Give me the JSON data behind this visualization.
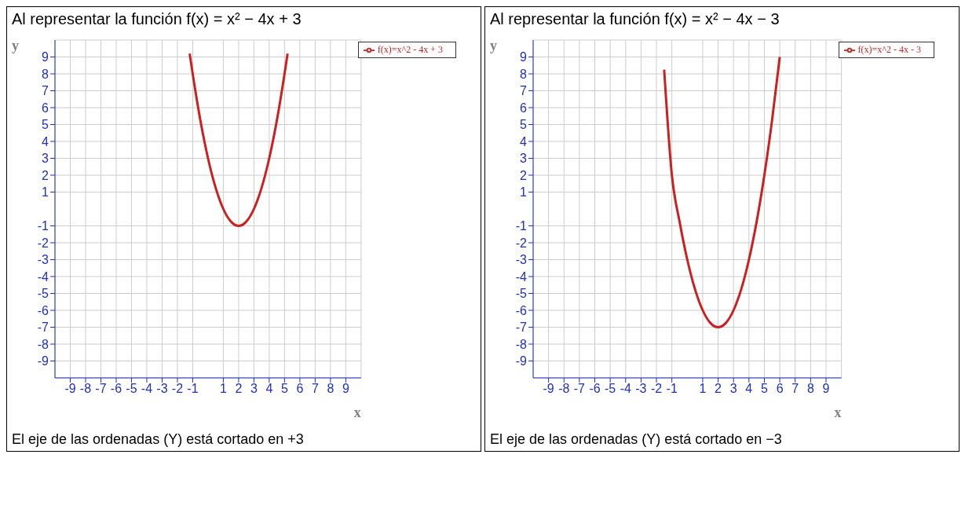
{
  "chart_data": [
    {
      "type": "line",
      "title": "Al representar la función f(x) = x² − 4x + 3",
      "xlabel": "x",
      "ylabel": "y",
      "xlim": [
        -10,
        10
      ],
      "ylim": [
        -10,
        10
      ],
      "xticks": [
        -9,
        -8,
        -7,
        -6,
        -5,
        -4,
        -3,
        -2,
        -1,
        1,
        2,
        3,
        4,
        5,
        6,
        7,
        8,
        9
      ],
      "yticks": [
        -9,
        -8,
        -7,
        -6,
        -5,
        -4,
        -3,
        -2,
        -1,
        1,
        2,
        3,
        4,
        5,
        6,
        7,
        8,
        9
      ],
      "grid": true,
      "legend": "top right",
      "marker": "none",
      "line_style": "solid",
      "series": [
        {
          "name": "f(x)=x^2 - 4x + 3",
          "color": "#cc1f1f",
          "x": [
            -1.2,
            -1,
            -0.5,
            0,
            0.5,
            1,
            1.5,
            2,
            2.5,
            3,
            3.5,
            4,
            4.5,
            5,
            5.2
          ],
          "values": [
            9.2,
            8,
            5.25,
            3,
            1.25,
            0,
            -0.75,
            -1,
            -0.75,
            0,
            1.25,
            3,
            5.25,
            8,
            9.2
          ]
        }
      ],
      "annotations": [
        "El eje de las ordenadas (Y) está cortado en +3"
      ]
    },
    {
      "type": "line",
      "title": "Al representar la función f(x) = x² − 4x − 3",
      "xlabel": "x",
      "ylabel": "y",
      "xlim": [
        -10,
        10
      ],
      "ylim": [
        -10,
        10
      ],
      "xticks": [
        -9,
        -8,
        -7,
        -6,
        -5,
        -4,
        -3,
        -2,
        -1,
        1,
        2,
        3,
        4,
        5,
        6,
        7,
        8,
        9
      ],
      "yticks": [
        -9,
        -8,
        -7,
        -6,
        -5,
        -4,
        -3,
        -2,
        -1,
        1,
        2,
        3,
        4,
        5,
        6,
        7,
        8,
        9
      ],
      "grid": true,
      "legend": "top right",
      "marker": "none",
      "line_style": "solid",
      "series": [
        {
          "name": "f(x)=x^2 - 4x - 3",
          "color": "#cc1f1f",
          "x": [
            -1.5,
            -1,
            -0.5,
            0,
            0.5,
            1,
            1.5,
            2,
            2.5,
            3,
            3.5,
            4,
            4.5,
            5,
            5.5,
            6
          ],
          "values": [
            8.25,
            2,
            -0.75,
            -3,
            -4.75,
            -6,
            -6.75,
            -7,
            -6.75,
            -6,
            -4.75,
            -3,
            -0.75,
            2,
            5.25,
            9
          ]
        }
      ],
      "annotations": [
        "El eje de las ordenadas (Y) está cortado en −3"
      ]
    }
  ]
}
